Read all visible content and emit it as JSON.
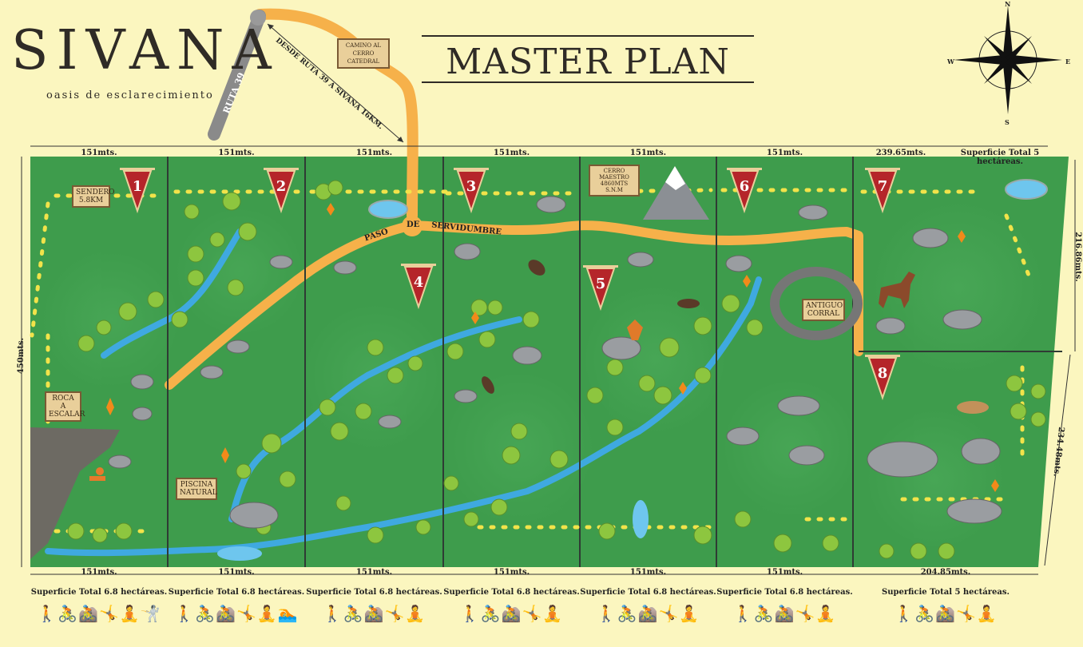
{
  "brand": {
    "name": "SIVANA",
    "tagline": "oasis de esclarecimiento"
  },
  "title": "MASTER PLAN",
  "compass": {
    "n": "N",
    "s": "S",
    "e": "E",
    "w": "W"
  },
  "road": {
    "route_label": "RUTA 39",
    "distance_label": "DESDE RUTA 39 A SIVANA 16KM.",
    "cathedral_sign": "CAMINO AL CERRO CATEDRAL",
    "servidumbre": [
      "PASO",
      "DE",
      "SERVIDUMBRE"
    ]
  },
  "dimensions": {
    "top": [
      "151mts.",
      "151mts.",
      "151mts.",
      "151mts.",
      "151mts.",
      "151mts.",
      "239.65mts."
    ],
    "top_total": "Superficie Total 5 hectáreas.",
    "bottom": [
      "151mts.",
      "151mts.",
      "151mts.",
      "151mts.",
      "151mts.",
      "151mts.",
      "204.85mts."
    ],
    "left": "450mts.",
    "right_upper": "216.86mts.",
    "right_lower": "234.48mts."
  },
  "lots": [
    {
      "number": "1",
      "surface": "Superficie Total 6.8 hectáreas.",
      "activities": "🚶🚴🚵🤸🧘🤺"
    },
    {
      "number": "2",
      "surface": "Superficie Total 6.8 hectáreas.",
      "activities": "🚶🚴🚵🤸🧘🏊"
    },
    {
      "number": "3",
      "surface": "Superficie Total 6.8 hectáreas.",
      "activities": "🚶🚴🚵🤸🧘"
    },
    {
      "number": "4",
      "surface": "Superficie Total 6.8 hectáreas.",
      "activities": "🚶🚴🚵🤸🧘"
    },
    {
      "number": "5",
      "surface": "Superficie Total 6.8 hectáreas.",
      "activities": "🚶🚴🚵🤸🧘"
    },
    {
      "number": "6",
      "surface": "Superficie Total 6.8 hectáreas.",
      "activities": "🚶🚴🚵🤸🧘"
    },
    {
      "number": "7",
      "surface": "Superficie Total 5 hectáreas.",
      "activities": "🚶🚴🚵🤸🧘"
    },
    {
      "number": "8"
    }
  ],
  "signs": {
    "sendero": "SENDERO 5.8KM",
    "roca": "ROCA A ESCALAR",
    "piscina": "PISCINA NATURAL",
    "cerro": "CERRO MAESTRO 4860MTS S.N.M",
    "corral": "ANTIGUO CORRAL"
  },
  "colors": {
    "background": "#fbf6bf",
    "field": "#3e9c4c",
    "road": "#f6b14a",
    "river": "#3fa9e0",
    "pennant": "#b5252a",
    "divider": "#2f3b34"
  }
}
